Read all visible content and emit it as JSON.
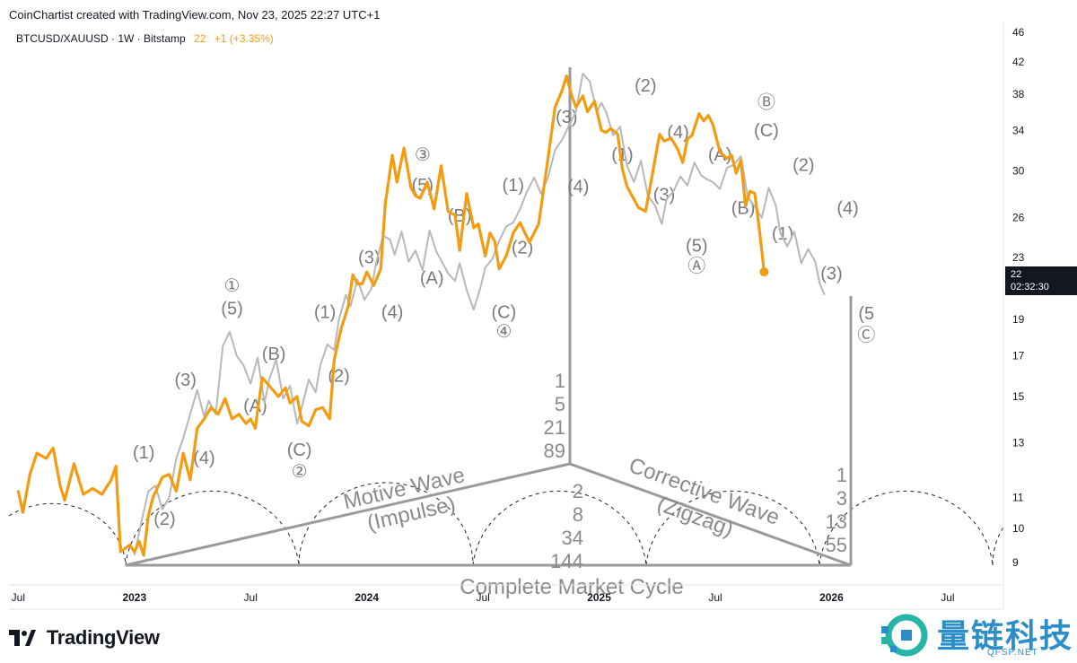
{
  "header": {
    "credit": "CoinChartist created with TradingView.com, Nov 23, 2025 22:27 UTC+1",
    "symbol": "BTCUSD/XAUUSD · 1W · Bitstamp",
    "last_value": "22",
    "change": "+1 (+3.35%)"
  },
  "price_tag": {
    "value": "22",
    "countdown": "02:32:30"
  },
  "footer": {
    "brand": "TradingView"
  },
  "watermark": {
    "cn": "量链科技",
    "en": "QFSP.NET"
  },
  "colors": {
    "price_line": "#f39c12",
    "overlay_line": "#b8b8b8",
    "diagram": "#9a9a9a",
    "text": "#131722"
  },
  "chart_data": {
    "type": "line",
    "title": "BTCUSD/XAUUSD · 1W · Bitstamp",
    "y_scale": "log",
    "ylim": [
      8.4,
      47
    ],
    "y_ticks": [
      46,
      42,
      38,
      34,
      30,
      26,
      23,
      19,
      17,
      15,
      13,
      11,
      10,
      9
    ],
    "x_ticks": [
      {
        "label": "Jul",
        "t": 2022.5,
        "bold": false
      },
      {
        "label": "2023",
        "t": 2023.0,
        "bold": true
      },
      {
        "label": "Jul",
        "t": 2023.5,
        "bold": false
      },
      {
        "label": "2024",
        "t": 2024.0,
        "bold": true
      },
      {
        "label": "Jul",
        "t": 2024.5,
        "bold": false
      },
      {
        "label": "2025",
        "t": 2025.0,
        "bold": true
      },
      {
        "label": "Jul",
        "t": 2025.5,
        "bold": false
      },
      {
        "label": "2026",
        "t": 2026.0,
        "bold": true
      },
      {
        "label": "Jul",
        "t": 2026.5,
        "bold": false
      }
    ],
    "series": [
      {
        "name": "BTCUSD/XAUUSD",
        "color": "#f39c12",
        "points": [
          [
            2022.5,
            11.2
          ],
          [
            2022.52,
            10.5
          ],
          [
            2022.55,
            11.8
          ],
          [
            2022.58,
            12.6
          ],
          [
            2022.62,
            12.4
          ],
          [
            2022.65,
            12.8
          ],
          [
            2022.68,
            11.4
          ],
          [
            2022.7,
            10.9
          ],
          [
            2022.74,
            12.2
          ],
          [
            2022.78,
            11.1
          ],
          [
            2022.82,
            11.3
          ],
          [
            2022.86,
            11.1
          ],
          [
            2022.9,
            11.6
          ],
          [
            2022.92,
            12.1
          ],
          [
            2022.94,
            9.3
          ],
          [
            2022.98,
            9.5
          ],
          [
            2023.0,
            9.3
          ],
          [
            2023.02,
            9.6
          ],
          [
            2023.04,
            9.2
          ],
          [
            2023.06,
            10.4
          ],
          [
            2023.08,
            11.0
          ],
          [
            2023.12,
            11.7
          ],
          [
            2023.15,
            11.8
          ],
          [
            2023.18,
            11.2
          ],
          [
            2023.21,
            12.6
          ],
          [
            2023.24,
            11.6
          ],
          [
            2023.27,
            13.6
          ],
          [
            2023.3,
            14.0
          ],
          [
            2023.33,
            14.5
          ],
          [
            2023.36,
            14.2
          ],
          [
            2023.39,
            14.9
          ],
          [
            2023.42,
            14.0
          ],
          [
            2023.45,
            14.2
          ],
          [
            2023.48,
            13.8
          ],
          [
            2023.5,
            14.0
          ],
          [
            2023.52,
            13.6
          ],
          [
            2023.55,
            15.9
          ],
          [
            2023.58,
            15.5
          ],
          [
            2023.62,
            15.0
          ],
          [
            2023.65,
            15.4
          ],
          [
            2023.67,
            14.7
          ],
          [
            2023.7,
            15.0
          ],
          [
            2023.72,
            13.9
          ],
          [
            2023.75,
            13.7
          ],
          [
            2023.78,
            14.4
          ],
          [
            2023.81,
            14.5
          ],
          [
            2023.84,
            14.0
          ],
          [
            2023.86,
            16.8
          ],
          [
            2023.89,
            18.5
          ],
          [
            2023.92,
            19.8
          ],
          [
            2023.94,
            21.8
          ],
          [
            2023.96,
            21.2
          ],
          [
            2023.98,
            21.2
          ],
          [
            2024.0,
            22.0
          ],
          [
            2024.03,
            21.1
          ],
          [
            2024.06,
            22.2
          ],
          [
            2024.08,
            27.2
          ],
          [
            2024.11,
            31.5
          ],
          [
            2024.13,
            29.0
          ],
          [
            2024.16,
            32.2
          ],
          [
            2024.19,
            28.5
          ],
          [
            2024.21,
            27.8
          ],
          [
            2024.23,
            27.6
          ],
          [
            2024.26,
            29.0
          ],
          [
            2024.29,
            26.7
          ],
          [
            2024.32,
            30.5
          ],
          [
            2024.35,
            26.5
          ],
          [
            2024.38,
            26.2
          ],
          [
            2024.4,
            23.5
          ],
          [
            2024.43,
            28.0
          ],
          [
            2024.46,
            25.2
          ],
          [
            2024.48,
            25.5
          ],
          [
            2024.51,
            23.1
          ],
          [
            2024.53,
            24.8
          ],
          [
            2024.55,
            24.2
          ],
          [
            2024.57,
            22.2
          ],
          [
            2024.6,
            23.1
          ],
          [
            2024.63,
            24.8
          ],
          [
            2024.66,
            25.6
          ],
          [
            2024.7,
            24.1
          ],
          [
            2024.74,
            25.5
          ],
          [
            2024.78,
            31.2
          ],
          [
            2024.81,
            36.5
          ],
          [
            2024.84,
            38.4
          ],
          [
            2024.86,
            40.2
          ],
          [
            2024.88,
            38.0
          ],
          [
            2024.9,
            36.5
          ],
          [
            2024.93,
            37.8
          ],
          [
            2024.95,
            36.0
          ],
          [
            2024.98,
            37.2
          ],
          [
            2025.01,
            34.0
          ],
          [
            2025.03,
            33.8
          ],
          [
            2025.05,
            34.2
          ],
          [
            2025.08,
            33.6
          ],
          [
            2025.1,
            30.2
          ],
          [
            2025.12,
            28.6
          ],
          [
            2025.15,
            27.5
          ],
          [
            2025.17,
            26.8
          ],
          [
            2025.2,
            26.5
          ],
          [
            2025.23,
            29.8
          ],
          [
            2025.26,
            33.6
          ],
          [
            2025.28,
            32.9
          ],
          [
            2025.31,
            33.2
          ],
          [
            2025.34,
            32.0
          ],
          [
            2025.36,
            30.8
          ],
          [
            2025.38,
            33.1
          ],
          [
            2025.4,
            33.5
          ],
          [
            2025.43,
            35.8
          ],
          [
            2025.45,
            35.0
          ],
          [
            2025.47,
            35.6
          ],
          [
            2025.49,
            34.6
          ],
          [
            2025.52,
            31.8
          ],
          [
            2025.55,
            31.2
          ],
          [
            2025.57,
            31.5
          ],
          [
            2025.59,
            29.8
          ],
          [
            2025.61,
            31.0
          ],
          [
            2025.63,
            27.0
          ],
          [
            2025.65,
            28.2
          ],
          [
            2025.67,
            28.0
          ],
          [
            2025.69,
            25.0
          ],
          [
            2025.71,
            22.0
          ]
        ]
      },
      {
        "name": "Elliott wave overlay (grey)",
        "color": "#b8b8b8",
        "points": [
          [
            2023.0,
            9.2
          ],
          [
            2023.03,
            10.2
          ],
          [
            2023.06,
            11.2
          ],
          [
            2023.09,
            11.4
          ],
          [
            2023.12,
            10.6
          ],
          [
            2023.15,
            11.0
          ],
          [
            2023.18,
            12.4
          ],
          [
            2023.21,
            13.2
          ],
          [
            2023.24,
            14.2
          ],
          [
            2023.27,
            15.3
          ],
          [
            2023.3,
            14.1
          ],
          [
            2023.32,
            14.8
          ],
          [
            2023.35,
            14.2
          ],
          [
            2023.38,
            17.5
          ],
          [
            2023.41,
            18.3
          ],
          [
            2023.44,
            17.0
          ],
          [
            2023.47,
            16.5
          ],
          [
            2023.5,
            15.6
          ],
          [
            2023.53,
            16.9
          ],
          [
            2023.56,
            14.7
          ],
          [
            2023.58,
            15.8
          ],
          [
            2023.61,
            16.8
          ],
          [
            2023.64,
            14.9
          ],
          [
            2023.67,
            15.5
          ],
          [
            2023.7,
            13.8
          ],
          [
            2023.72,
            14.5
          ],
          [
            2023.75,
            15.8
          ],
          [
            2023.78,
            15.2
          ],
          [
            2023.8,
            16.5
          ],
          [
            2023.83,
            17.6
          ],
          [
            2023.86,
            17.3
          ],
          [
            2023.88,
            19.0
          ],
          [
            2023.91,
            20.5
          ],
          [
            2023.93,
            19.8
          ],
          [
            2023.96,
            21.5
          ],
          [
            2023.99,
            20.2
          ],
          [
            2024.02,
            20.9
          ],
          [
            2024.04,
            22.6
          ],
          [
            2024.07,
            24.6
          ],
          [
            2024.1,
            24.3
          ],
          [
            2024.12,
            23.2
          ],
          [
            2024.15,
            24.9
          ],
          [
            2024.18,
            22.7
          ],
          [
            2024.21,
            23.5
          ],
          [
            2024.24,
            22.1
          ],
          [
            2024.27,
            25.0
          ],
          [
            2024.3,
            23.4
          ],
          [
            2024.32,
            22.8
          ],
          [
            2024.35,
            21.9
          ],
          [
            2024.38,
            21.4
          ],
          [
            2024.4,
            22.6
          ],
          [
            2024.43,
            20.8
          ],
          [
            2024.46,
            19.6
          ],
          [
            2024.49,
            21.0
          ],
          [
            2024.51,
            22.3
          ],
          [
            2024.54,
            22.9
          ],
          [
            2024.57,
            24.2
          ],
          [
            2024.6,
            25.3
          ],
          [
            2024.63,
            25.6
          ],
          [
            2024.66,
            26.7
          ],
          [
            2024.69,
            28.2
          ],
          [
            2024.72,
            29.4
          ],
          [
            2024.75,
            28.0
          ],
          [
            2024.78,
            29.4
          ],
          [
            2024.81,
            32.0
          ],
          [
            2024.84,
            33.0
          ],
          [
            2024.87,
            34.5
          ],
          [
            2024.9,
            36.0
          ],
          [
            2024.93,
            40.5
          ],
          [
            2024.96,
            39.5
          ],
          [
            2024.99,
            36.0
          ],
          [
            2025.01,
            37.0
          ],
          [
            2025.03,
            36.0
          ],
          [
            2025.06,
            33.5
          ],
          [
            2025.09,
            34.4
          ],
          [
            2025.12,
            30.5
          ],
          [
            2025.15,
            29.0
          ],
          [
            2025.18,
            31.0
          ],
          [
            2025.21,
            27.8
          ],
          [
            2025.24,
            27.0
          ],
          [
            2025.27,
            25.5
          ],
          [
            2025.29,
            27.5
          ],
          [
            2025.32,
            28.2
          ],
          [
            2025.35,
            29.5
          ],
          [
            2025.38,
            28.7
          ],
          [
            2025.41,
            30.8
          ],
          [
            2025.44,
            29.6
          ],
          [
            2025.46,
            29.3
          ],
          [
            2025.49,
            29.0
          ],
          [
            2025.52,
            28.4
          ],
          [
            2025.55,
            30.3
          ],
          [
            2025.58,
            30.6
          ],
          [
            2025.61,
            31.4
          ],
          [
            2025.64,
            27.7
          ],
          [
            2025.67,
            26.9
          ],
          [
            2025.7,
            26.0
          ],
          [
            2025.73,
            28.5
          ],
          [
            2025.76,
            27.0
          ],
          [
            2025.78,
            24.8
          ],
          [
            2025.81,
            23.8
          ],
          [
            2025.84,
            24.9
          ],
          [
            2025.87,
            22.6
          ],
          [
            2025.9,
            23.6
          ],
          [
            2025.93,
            22.7
          ],
          [
            2025.95,
            21.2
          ],
          [
            2025.97,
            20.5
          ]
        ]
      }
    ],
    "wave_labels": [
      {
        "text": "①",
        "t": 2023.42,
        "v": 20.7
      },
      {
        "text": "(5)",
        "t": 2023.42,
        "v": 19.3
      },
      {
        "text": "(B)",
        "t": 2023.6,
        "v": 16.8
      },
      {
        "text": "(3)",
        "t": 2023.22,
        "v": 15.5
      },
      {
        "text": "(A)",
        "t": 2023.52,
        "v": 14.3
      },
      {
        "text": "(1)",
        "t": 2023.04,
        "v": 12.4
      },
      {
        "text": "(4)",
        "t": 2023.3,
        "v": 12.2
      },
      {
        "text": "(C)",
        "t": 2023.71,
        "v": 12.5
      },
      {
        "text": "②",
        "t": 2023.71,
        "v": 11.7
      },
      {
        "text": "(2)",
        "t": 2023.13,
        "v": 10.1
      },
      {
        "text": "(2)",
        "t": 2023.88,
        "v": 15.7
      },
      {
        "text": "(3)",
        "t": 2024.01,
        "v": 22.6
      },
      {
        "text": "(1)",
        "t": 2023.82,
        "v": 19.1
      },
      {
        "text": "(4)",
        "t": 2024.11,
        "v": 19.1
      },
      {
        "text": "③",
        "t": 2024.24,
        "v": 31.0
      },
      {
        "text": "(5)",
        "t": 2024.24,
        "v": 28.2
      },
      {
        "text": "(B)",
        "t": 2024.4,
        "v": 25.7
      },
      {
        "text": "(A)",
        "t": 2024.28,
        "v": 21.2
      },
      {
        "text": "(C)",
        "t": 2024.59,
        "v": 19.1
      },
      {
        "text": "④",
        "t": 2024.59,
        "v": 18.0
      },
      {
        "text": "(1)",
        "t": 2024.63,
        "v": 28.2
      },
      {
        "text": "(2)",
        "t": 2024.67,
        "v": 23.3
      },
      {
        "text": "(3)",
        "t": 2024.86,
        "v": 34.8
      },
      {
        "text": "(4)",
        "t": 2024.91,
        "v": 28.1
      },
      {
        "text": "(2)",
        "t": 2025.2,
        "v": 38.3
      },
      {
        "text": "(1)",
        "t": 2025.1,
        "v": 31.0
      },
      {
        "text": "(3)",
        "t": 2025.28,
        "v": 27.4
      },
      {
        "text": "(4)",
        "t": 2025.34,
        "v": 33.2
      },
      {
        "text": "(5)",
        "t": 2025.42,
        "v": 23.4
      },
      {
        "text": "Ⓐ",
        "t": 2025.42,
        "v": 22.0
      },
      {
        "text": "(A)",
        "t": 2025.52,
        "v": 31.0
      },
      {
        "text": "(B)",
        "t": 2025.62,
        "v": 26.3
      },
      {
        "text": "Ⓑ",
        "t": 2025.72,
        "v": 36.4
      },
      {
        "text": "(C)",
        "t": 2025.72,
        "v": 33.4
      },
      {
        "text": "(1)",
        "t": 2025.79,
        "v": 24.3
      },
      {
        "text": "(2)",
        "t": 2025.88,
        "v": 30.0
      },
      {
        "text": "(4)",
        "t": 2026.07,
        "v": 26.3
      },
      {
        "text": "(3)",
        "t": 2026.0,
        "v": 21.5
      },
      {
        "text": "(5",
        "t": 2026.15,
        "v": 19.0
      },
      {
        "text": "Ⓒ",
        "t": 2026.15,
        "v": 17.8
      }
    ],
    "annotations": {
      "fib_up": [
        "1",
        "5",
        "21",
        "89"
      ],
      "fib_down": [
        "2",
        "8",
        "34",
        "144"
      ],
      "fib_right": [
        "1",
        "3",
        "13",
        "55"
      ],
      "motive_line1": "Motive Wave",
      "motive_line2": "(Impulse)",
      "corrective_line1": "Corrective Wave",
      "corrective_line2": "(Zigzag)",
      "bottom": "Complete Market Cycle"
    },
    "xlabel": "",
    "ylabel": ""
  }
}
